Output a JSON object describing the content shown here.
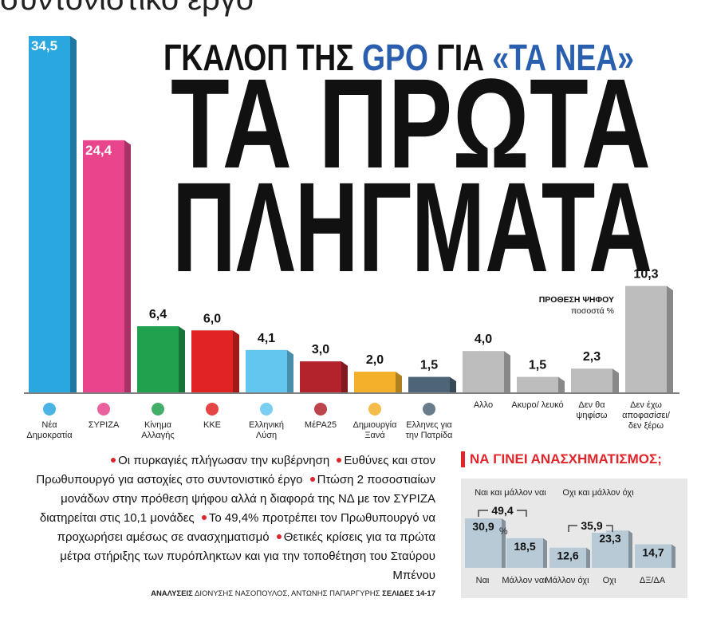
{
  "header": {
    "overflow_text": "συντονιστικό έργο",
    "kicker": [
      "ΓΚΑΛΟΠ ΤΗΣ",
      "GPO",
      "ΓΙΑ",
      "«ΤΑ ΝΕΑ»"
    ],
    "headline": [
      "ΤΑ ΠΡΩΤΑ",
      "ΠΛΗΓΜΑΤΑ"
    ]
  },
  "chart_data": [
    {
      "type": "bar",
      "subtitle": "ΠΡΟΘΕΣΗ ΨΗΦΟΥ",
      "unit_label": "ποσοστά %",
      "categories": [
        "Νέα Δημοκρατία",
        "ΣΥΡΙΖΑ",
        "Κίνημα Αλλαγής",
        "ΚΚΕ",
        "Ελληνική Λύση",
        "ΜέΡΑ25",
        "Δημιουργία Ξανά",
        "Ελληνες για την Πατρίδα",
        "Αλλο",
        "Ακυρο/ λευκό",
        "Δεν θα ψηφίσω",
        "Δεν έχω αποφασίσει/ δεν ξέρω"
      ],
      "values": [
        34.5,
        24.4,
        6.4,
        6.0,
        4.1,
        3.0,
        2.0,
        1.5,
        4.0,
        1.5,
        2.3,
        10.3
      ],
      "value_labels": [
        "34,5",
        "24,4",
        "6,4",
        "6,0",
        "4,1",
        "3,0",
        "2,0",
        "1,5",
        "4,0",
        "1,5",
        "2,3",
        "10,3"
      ],
      "colors": [
        "#2aa7df",
        "#e8458c",
        "#21a04e",
        "#e02424",
        "#62c6ee",
        "#b3232c",
        "#f4b02a",
        "#4d6577",
        "#bdbdbd",
        "#bdbdbd",
        "#bdbdbd",
        "#bdbdbd"
      ]
    },
    {
      "type": "bar",
      "title": "ΝΑ ΓΙΝΕΙ ΑΝΑΣΧΗΜΑΤΙΣΜΟΣ;",
      "unit_label": "%",
      "categories": [
        "Ναι",
        "Μάλλον ναι",
        "Μάλλον όχι",
        "Οχι",
        "ΔΞ/ΔΑ"
      ],
      "values": [
        30.9,
        18.5,
        12.6,
        23.3,
        14.7
      ],
      "value_labels": [
        "30,9",
        "18,5",
        "12,6",
        "23,3",
        "14,7"
      ],
      "color": "#b7cad6",
      "groups": [
        {
          "label": "Ναι και μάλλον ναι",
          "value": 49.4,
          "value_label": "49,4"
        },
        {
          "label": "Οχι και μάλλον όχι",
          "value": 35.9,
          "value_label": "35,9"
        }
      ]
    }
  ],
  "article": {
    "bullets": [
      "Οι πυρκαγιές πλήγωσαν την κυβέρνηση",
      "Ευθύνες και στον Πρωθυπουργό για αστοχίες στο συντονιστικό έργο",
      "Πτώση 2 ποσοστιαίων μονάδων στην πρόθεση ψήφου αλλά η διαφορά της ΝΔ με τον ΣΥΡΙΖΑ διατηρείται στις 10,1 μονάδες",
      "Το 49,4% προτρέπει τον Πρωθυπουργό να προχωρήσει αμέσως σε ανασχηματισμό",
      "Θετικές κρίσεις για τα πρώτα μέτρα στήριξης των πυρόπληκτων και για την τοποθέτηση του Σταύρου Μπένου"
    ],
    "credits": [
      "ΑΝΑΛΥΣΕΙΣ",
      "ΔΙΟΝΥΣΗΣ ΝΑΣΟΠΟΥΛΟΣ, ΑΝΤΩΝΗΣ ΠΑΠΑΡΓΥΡΗΣ",
      "ΣΕΛΙΔΕΣ 14-17"
    ]
  }
}
